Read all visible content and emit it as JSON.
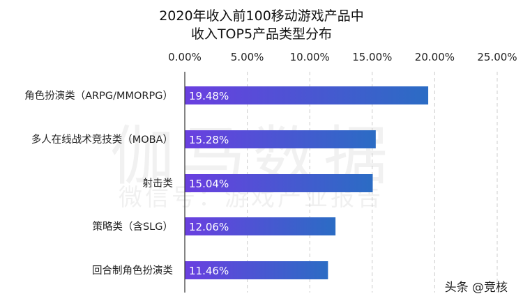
{
  "header": {
    "title_line1": "2020年收入前100移动游戏产品中",
    "title_line2": "收入TOP5产品类型分布"
  },
  "watermark": {
    "main": "伽马数据",
    "sub": "微信号：游戏产业报告"
  },
  "credit": "头条 @竞核",
  "colors": {
    "bar_start": "#6a3fe0",
    "bar_end": "#2b6cc4",
    "grid": "#cccccc",
    "axis": "#333333"
  },
  "chart_data": {
    "type": "bar",
    "orientation": "horizontal",
    "title": "2020年收入前100移动游戏产品中 收入TOP5产品类型分布",
    "categories": [
      "角色扮演类（ARPG/MMORPG）",
      "多人在线战术竞技类（MOBA）",
      "射击类",
      "策略类（含SLG）",
      "回合制角色扮演类"
    ],
    "values": [
      19.48,
      15.28,
      15.04,
      12.06,
      11.46
    ],
    "value_labels": [
      "19.48%",
      "15.28%",
      "15.04%",
      "12.06%",
      "11.46%"
    ],
    "xlim": [
      0,
      25
    ],
    "xticks": [
      0,
      5,
      10,
      15,
      20,
      25
    ],
    "xtick_labels": [
      "0.00%",
      "5.00%",
      "10.00%",
      "15.00%",
      "20.00%",
      "25.00%"
    ],
    "x_axis_position": "top",
    "grid": "vertical-dashed",
    "xlabel": "",
    "ylabel": ""
  }
}
